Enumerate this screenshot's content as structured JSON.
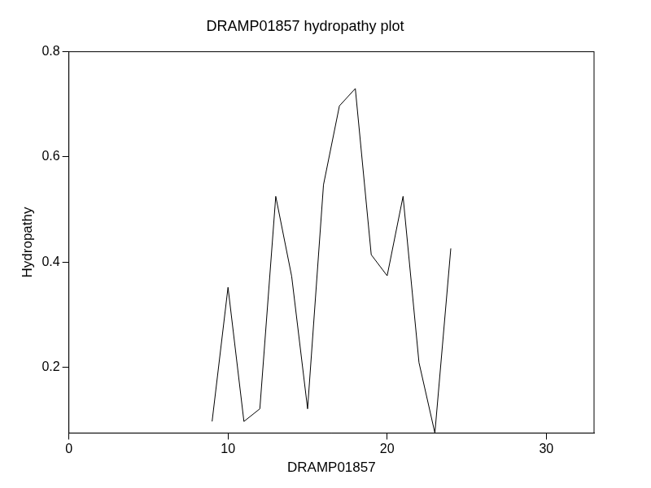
{
  "chart_data": {
    "type": "line",
    "title": "DRAMP01857 hydropathy plot",
    "x_label": "DRAMP01857",
    "y_label": "Hydropathy",
    "x": [
      9,
      10,
      11,
      12,
      13,
      14,
      15,
      16,
      17,
      18,
      19,
      20,
      21,
      22,
      23,
      24
    ],
    "values": [
      0.097,
      0.352,
      0.097,
      0.121,
      0.525,
      0.373,
      0.121,
      0.547,
      0.697,
      0.73,
      0.414,
      0.374,
      0.525,
      0.209,
      0.075,
      0.426
    ],
    "color": "#000000",
    "xlim": [
      0,
      33
    ],
    "xticks": [
      0,
      10,
      20,
      30
    ],
    "ylim": [
      0.075,
      0.8
    ],
    "yticks": [
      0.2,
      0.4,
      0.6,
      0.8
    ],
    "grid": false
  }
}
